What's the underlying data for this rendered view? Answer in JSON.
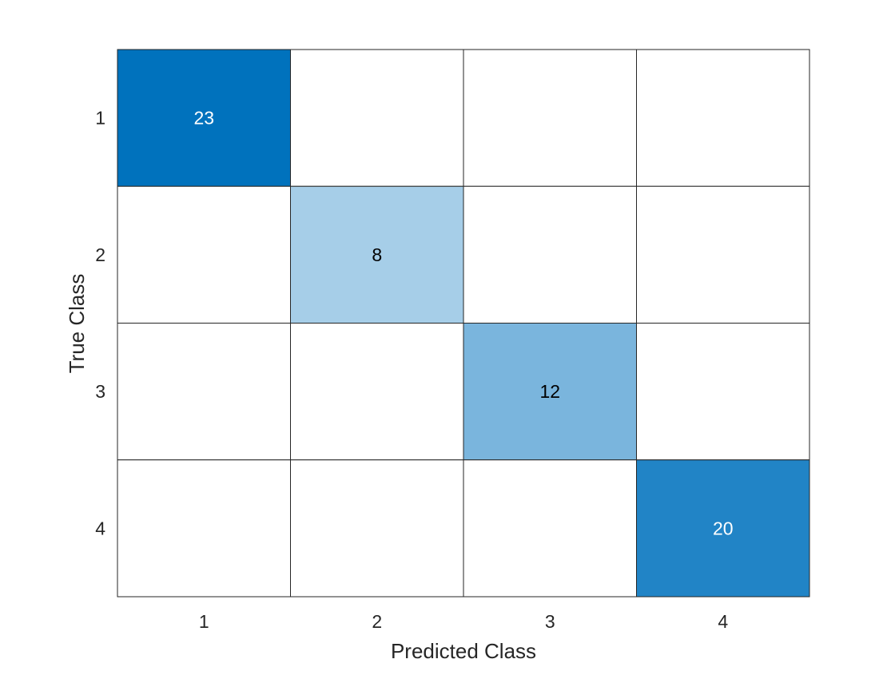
{
  "chart_data": {
    "type": "heatmap",
    "title": "",
    "xlabel": "Predicted Class",
    "ylabel": "True Class",
    "x_categories": [
      "1",
      "2",
      "3",
      "4"
    ],
    "y_categories": [
      "1",
      "2",
      "3",
      "4"
    ],
    "matrix": [
      [
        23,
        0,
        0,
        0
      ],
      [
        0,
        8,
        0,
        0
      ],
      [
        0,
        0,
        12,
        0
      ],
      [
        0,
        0,
        0,
        20
      ]
    ],
    "zero_cells_labeled": false,
    "color_scale": {
      "low": "#ffffff",
      "high": "#0072bd",
      "max": 23
    },
    "grid": true,
    "legend": "none"
  }
}
